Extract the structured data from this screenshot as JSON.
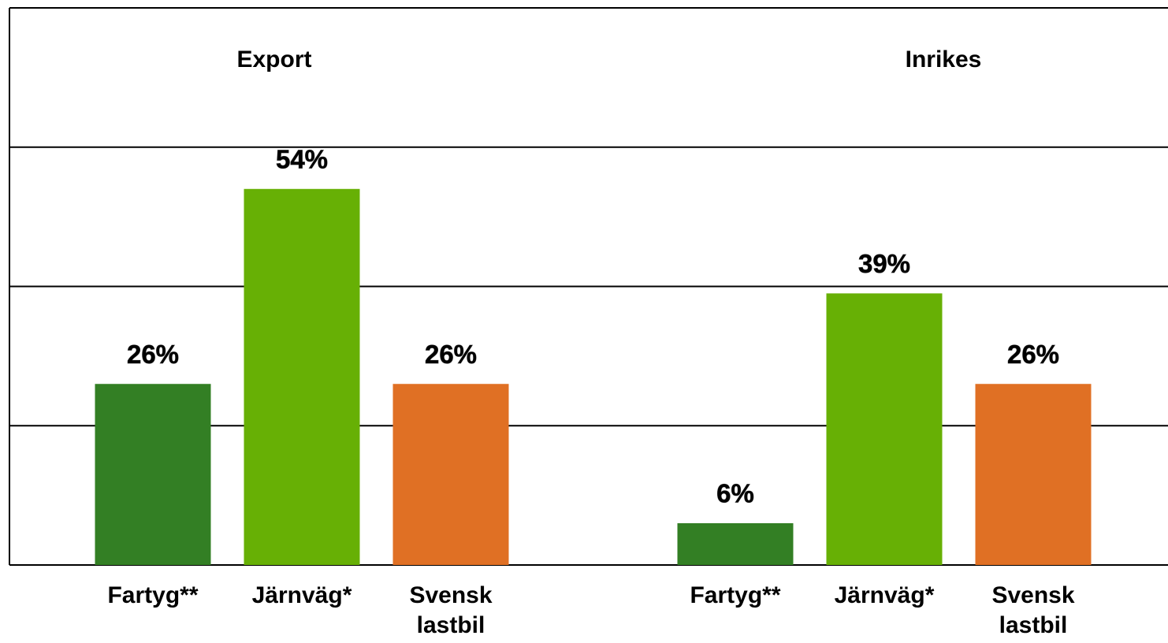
{
  "chart_data": [
    {
      "type": "bar",
      "title": "Export",
      "categories": [
        "Fartyg**",
        "Järnväg*",
        "Svensk lastbil"
      ],
      "values": [
        26,
        54,
        26
      ],
      "value_labels": [
        "26%",
        "54%",
        "26%"
      ],
      "colors": [
        "#337f24",
        "#67b005",
        "#e07024"
      ],
      "ylim": [
        0,
        80
      ],
      "yticks": [
        0,
        20,
        40,
        60,
        80
      ],
      "grid": true
    },
    {
      "type": "bar",
      "title": "Inrikes",
      "categories": [
        "Fartyg**",
        "Järnväg*",
        "Svensk lastbil"
      ],
      "values": [
        6,
        39,
        26
      ],
      "value_labels": [
        "6%",
        "39%",
        "26%"
      ],
      "colors": [
        "#337f24",
        "#67b005",
        "#e07024"
      ],
      "ylim": [
        0,
        80
      ],
      "yticks": [
        0,
        20,
        40,
        60,
        80
      ],
      "grid": true
    }
  ]
}
